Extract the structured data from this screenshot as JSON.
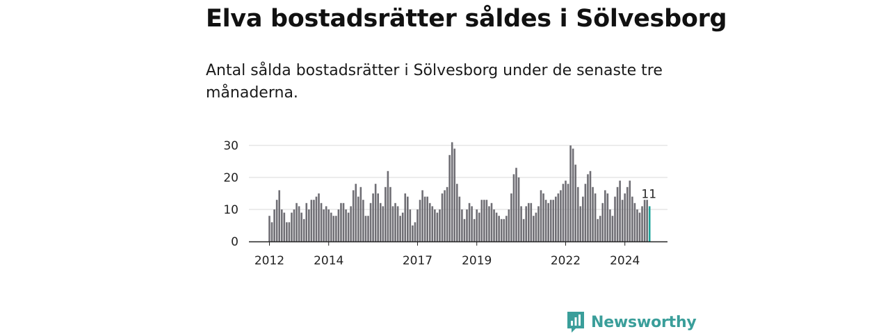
{
  "header": {
    "title": "Elva bostadsrätter såldes i Sölvesborg",
    "subtitle": "Antal sålda bostadsrätter i Sölvesborg under de senaste tre månaderna."
  },
  "brand": {
    "name": "Newsworthy",
    "icon": "newsworthy-logo-icon",
    "color": "#3a9e9a"
  },
  "chart_data": {
    "type": "bar",
    "title": "Elva bostadsrätter såldes i Sölvesborg",
    "xlabel": "",
    "ylabel": "",
    "ylim": [
      0,
      30
    ],
    "yticks": [
      0,
      10,
      20,
      30
    ],
    "x_tick_labels": [
      "2012",
      "2014",
      "2017",
      "2019",
      "2022",
      "2024"
    ],
    "grid": true,
    "bar_color": "#6f6e74",
    "highlight_color": "#1aa39a",
    "start": "2012-01",
    "highlight_label": "11",
    "series": [
      {
        "values": [
          8,
          6,
          10,
          13,
          16,
          10,
          9,
          6,
          6,
          9,
          10,
          12,
          11,
          9,
          7,
          12,
          10,
          13,
          13,
          14,
          15,
          12,
          10,
          11,
          10,
          9,
          8,
          8,
          10,
          12,
          12,
          10,
          9,
          11,
          16,
          18,
          14,
          17,
          13,
          8,
          8,
          12,
          15,
          18,
          15,
          12,
          11,
          17,
          22,
          17,
          11,
          12,
          11,
          8,
          9,
          15,
          14,
          10,
          5,
          6,
          10,
          13,
          16,
          14,
          14,
          12,
          11,
          10,
          9,
          10,
          15,
          16,
          17,
          27,
          31,
          29,
          18,
          14,
          10,
          7,
          10,
          12,
          11,
          7,
          10,
          9,
          13,
          13,
          13,
          11,
          12,
          10,
          9,
          8,
          7,
          7,
          8,
          10,
          15,
          21,
          23,
          20,
          11,
          7,
          11,
          12,
          12,
          8,
          9,
          11,
          16,
          15,
          13,
          12,
          13,
          13,
          14,
          15,
          16,
          18,
          19,
          18,
          30,
          29,
          24,
          17,
          11,
          14,
          18,
          21,
          22,
          17,
          15,
          7,
          8,
          12,
          16,
          15,
          10,
          8,
          14,
          17,
          19,
          13,
          15,
          17,
          19,
          14,
          12,
          10,
          9,
          11,
          13,
          13,
          11
        ]
      }
    ]
  }
}
